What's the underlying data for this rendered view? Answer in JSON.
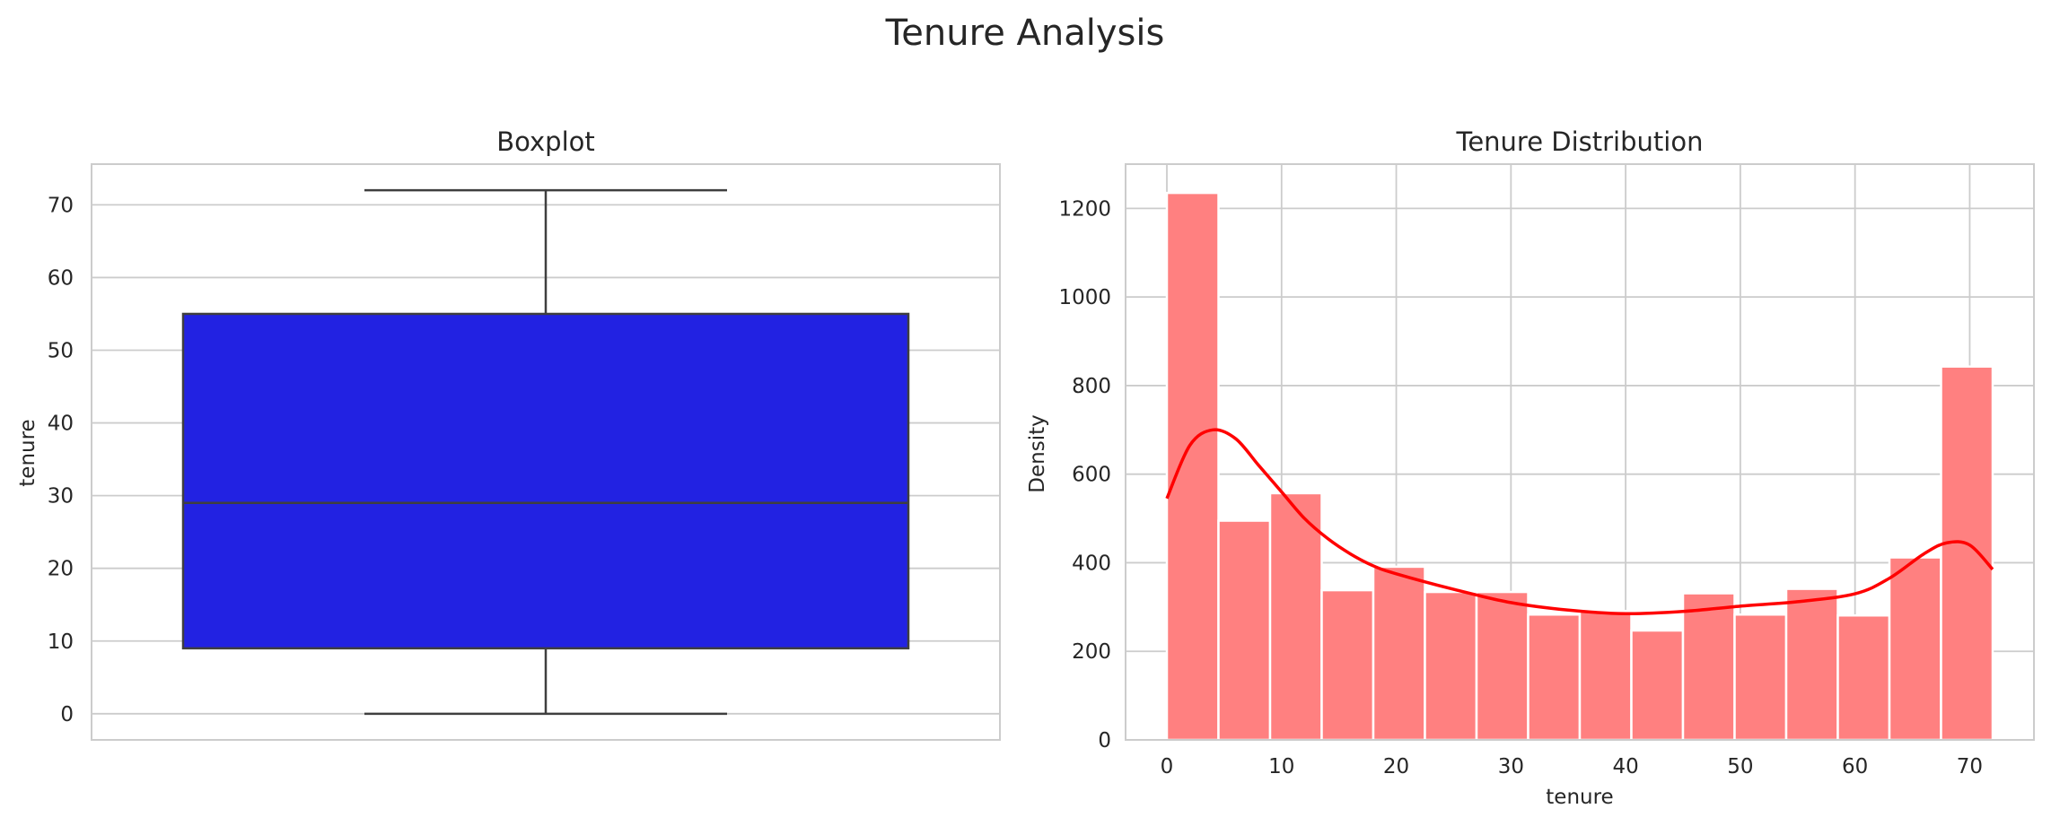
{
  "figure": {
    "title": "Tenure Analysis"
  },
  "colors": {
    "box_fill": "#2222e2",
    "box_edge": "#3f3f3f",
    "hist_fill": "#ff8080",
    "kde_line": "#ff0000",
    "grid": "#cccccc",
    "text": "#262626"
  },
  "chart_data": [
    {
      "type": "box",
      "title": "Boxplot",
      "xlabel": "",
      "ylabel": "tenure",
      "ylim": [
        -3.6,
        75.6
      ],
      "yticks": [
        0,
        10,
        20,
        30,
        40,
        50,
        60,
        70
      ],
      "grid": true,
      "stats": {
        "min": 0,
        "q1": 9,
        "median": 29,
        "q3": 55,
        "max": 72
      }
    },
    {
      "type": "histogram",
      "title": "Tenure Distribution",
      "xlabel": "tenure",
      "ylabel": "Density",
      "xlim": [
        -3.6,
        75.6
      ],
      "ylim": [
        0,
        1300
      ],
      "xticks": [
        0,
        10,
        20,
        30,
        40,
        50,
        60,
        70
      ],
      "yticks": [
        0,
        200,
        400,
        600,
        800,
        1000,
        1200
      ],
      "grid": true,
      "bin_edges": [
        0,
        4.5,
        9,
        13.5,
        18,
        22.5,
        27,
        31.5,
        36,
        40.5,
        45,
        49.5,
        54,
        58.5,
        63,
        67.5,
        72
      ],
      "counts": [
        1235,
        495,
        557,
        338,
        391,
        334,
        334,
        283,
        291,
        247,
        331,
        283,
        341,
        281,
        412,
        843
      ],
      "kde": {
        "x": [
          0,
          2,
          4,
          6,
          8,
          10,
          12,
          14,
          16,
          18,
          20,
          25,
          30,
          35,
          40,
          45,
          50,
          55,
          60,
          63,
          66,
          68,
          70,
          72
        ],
        "y": [
          545,
          665,
          700,
          680,
          620,
          560,
          500,
          455,
          420,
          393,
          375,
          340,
          310,
          293,
          285,
          290,
          302,
          312,
          330,
          365,
          420,
          445,
          440,
          385
        ]
      }
    }
  ]
}
